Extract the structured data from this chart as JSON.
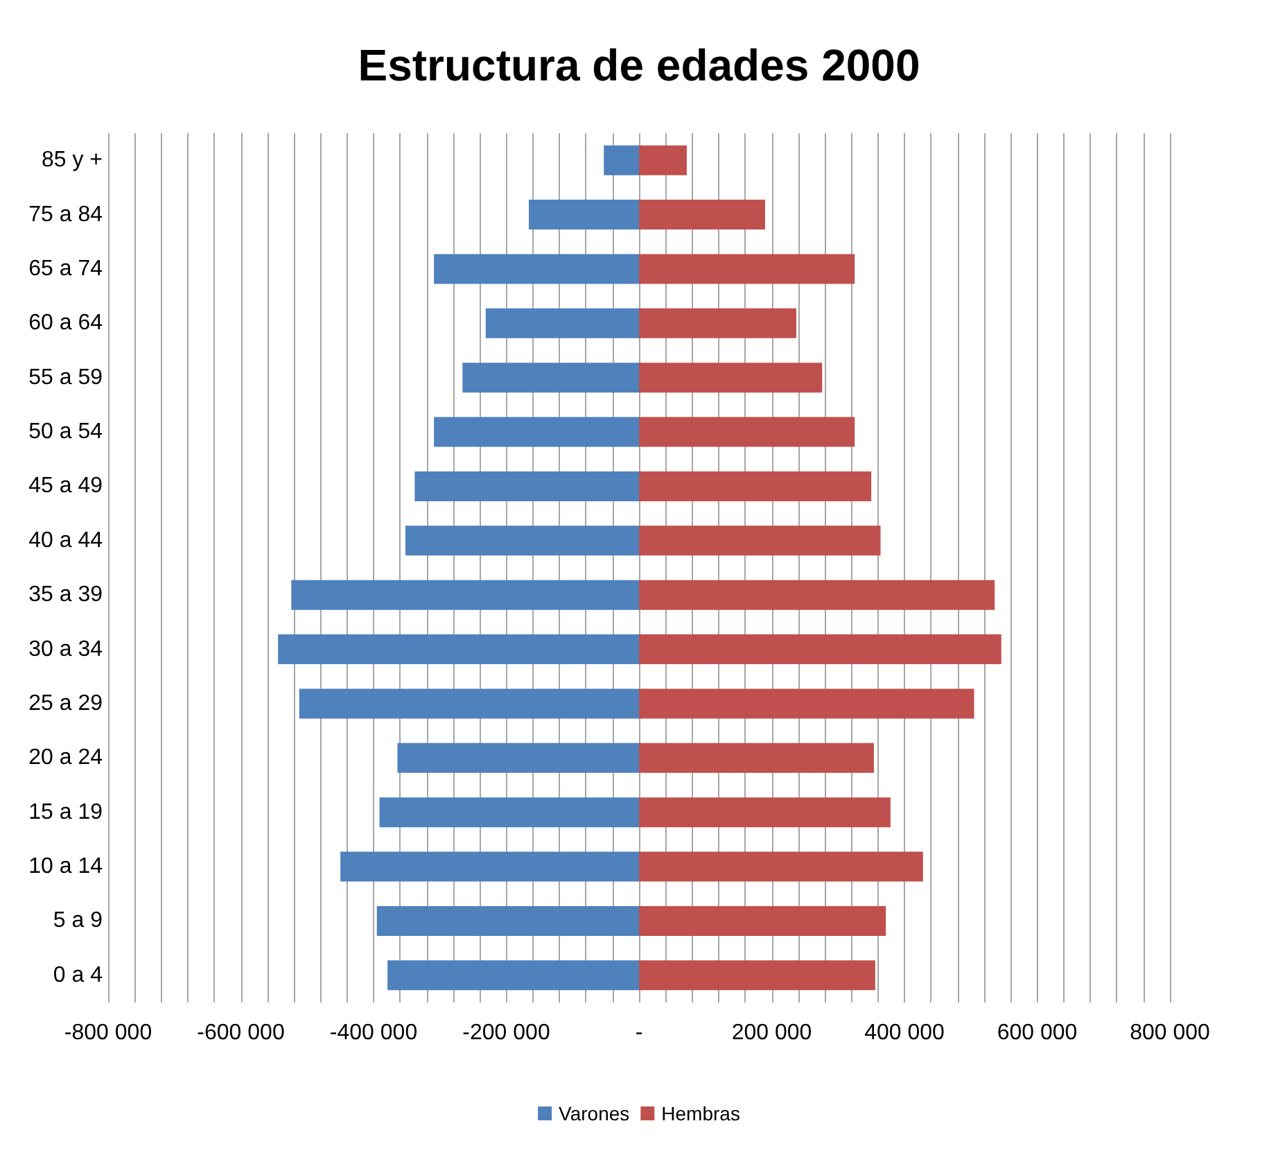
{
  "chart_data": {
    "type": "bar",
    "orientation": "horizontal",
    "stacked": true,
    "title": "Estructura de edades 2000",
    "categories": [
      "85 y +",
      "75 a 84",
      "65 a 74",
      "60 a 64",
      "55 a 59",
      "50 a 54",
      "45 a 49",
      "40 a 44",
      "35 a 39",
      "30 a 34",
      "25 a 29",
      "20 a 24",
      "15 a 19",
      "10 a 14",
      "5 a 9",
      "0 a 4"
    ],
    "series": [
      {
        "name": "Varones",
        "color": "#4f81bd",
        "values": [
          -53000,
          -166000,
          -309000,
          -231000,
          -266000,
          -309000,
          -338000,
          -352000,
          -524000,
          -544000,
          -512000,
          -364000,
          -391000,
          -450000,
          -395000,
          -379000
        ]
      },
      {
        "name": "Hembras",
        "color": "#c0504d",
        "values": [
          72000,
          190000,
          325000,
          237000,
          276000,
          325000,
          350000,
          364000,
          536000,
          546000,
          505000,
          354000,
          379000,
          428000,
          372000,
          356000
        ]
      }
    ],
    "xlim": [
      -800000,
      800000
    ],
    "xticks": [
      {
        "value": -800000,
        "label": "-800 000"
      },
      {
        "value": -760000,
        "label": null
      },
      {
        "value": -720000,
        "label": null
      },
      {
        "value": -680000,
        "label": null
      },
      {
        "value": -640000,
        "label": null
      },
      {
        "value": -600000,
        "label": "-600 000"
      },
      {
        "value": -560000,
        "label": null
      },
      {
        "value": -520000,
        "label": null
      },
      {
        "value": -480000,
        "label": null
      },
      {
        "value": -440000,
        "label": null
      },
      {
        "value": -400000,
        "label": "-400 000"
      },
      {
        "value": -360000,
        "label": null
      },
      {
        "value": -320000,
        "label": null
      },
      {
        "value": -280000,
        "label": null
      },
      {
        "value": -240000,
        "label": null
      },
      {
        "value": -200000,
        "label": "-200 000"
      },
      {
        "value": -160000,
        "label": null
      },
      {
        "value": -120000,
        "label": null
      },
      {
        "value": -80000,
        "label": null
      },
      {
        "value": -40000,
        "label": null
      },
      {
        "value": 0,
        "label": "-"
      },
      {
        "value": 40000,
        "label": null
      },
      {
        "value": 80000,
        "label": null
      },
      {
        "value": 120000,
        "label": null
      },
      {
        "value": 160000,
        "label": null
      },
      {
        "value": 200000,
        "label": "200 000"
      },
      {
        "value": 240000,
        "label": null
      },
      {
        "value": 280000,
        "label": null
      },
      {
        "value": 320000,
        "label": null
      },
      {
        "value": 360000,
        "label": null
      },
      {
        "value": 400000,
        "label": "400 000"
      },
      {
        "value": 440000,
        "label": null
      },
      {
        "value": 480000,
        "label": null
      },
      {
        "value": 520000,
        "label": null
      },
      {
        "value": 560000,
        "label": null
      },
      {
        "value": 600000,
        "label": "600 000"
      },
      {
        "value": 640000,
        "label": null
      },
      {
        "value": 680000,
        "label": null
      },
      {
        "value": 720000,
        "label": null
      },
      {
        "value": 760000,
        "label": null
      },
      {
        "value": 800000,
        "label": "800 000"
      }
    ],
    "grid": "x",
    "legend": "bottom"
  }
}
